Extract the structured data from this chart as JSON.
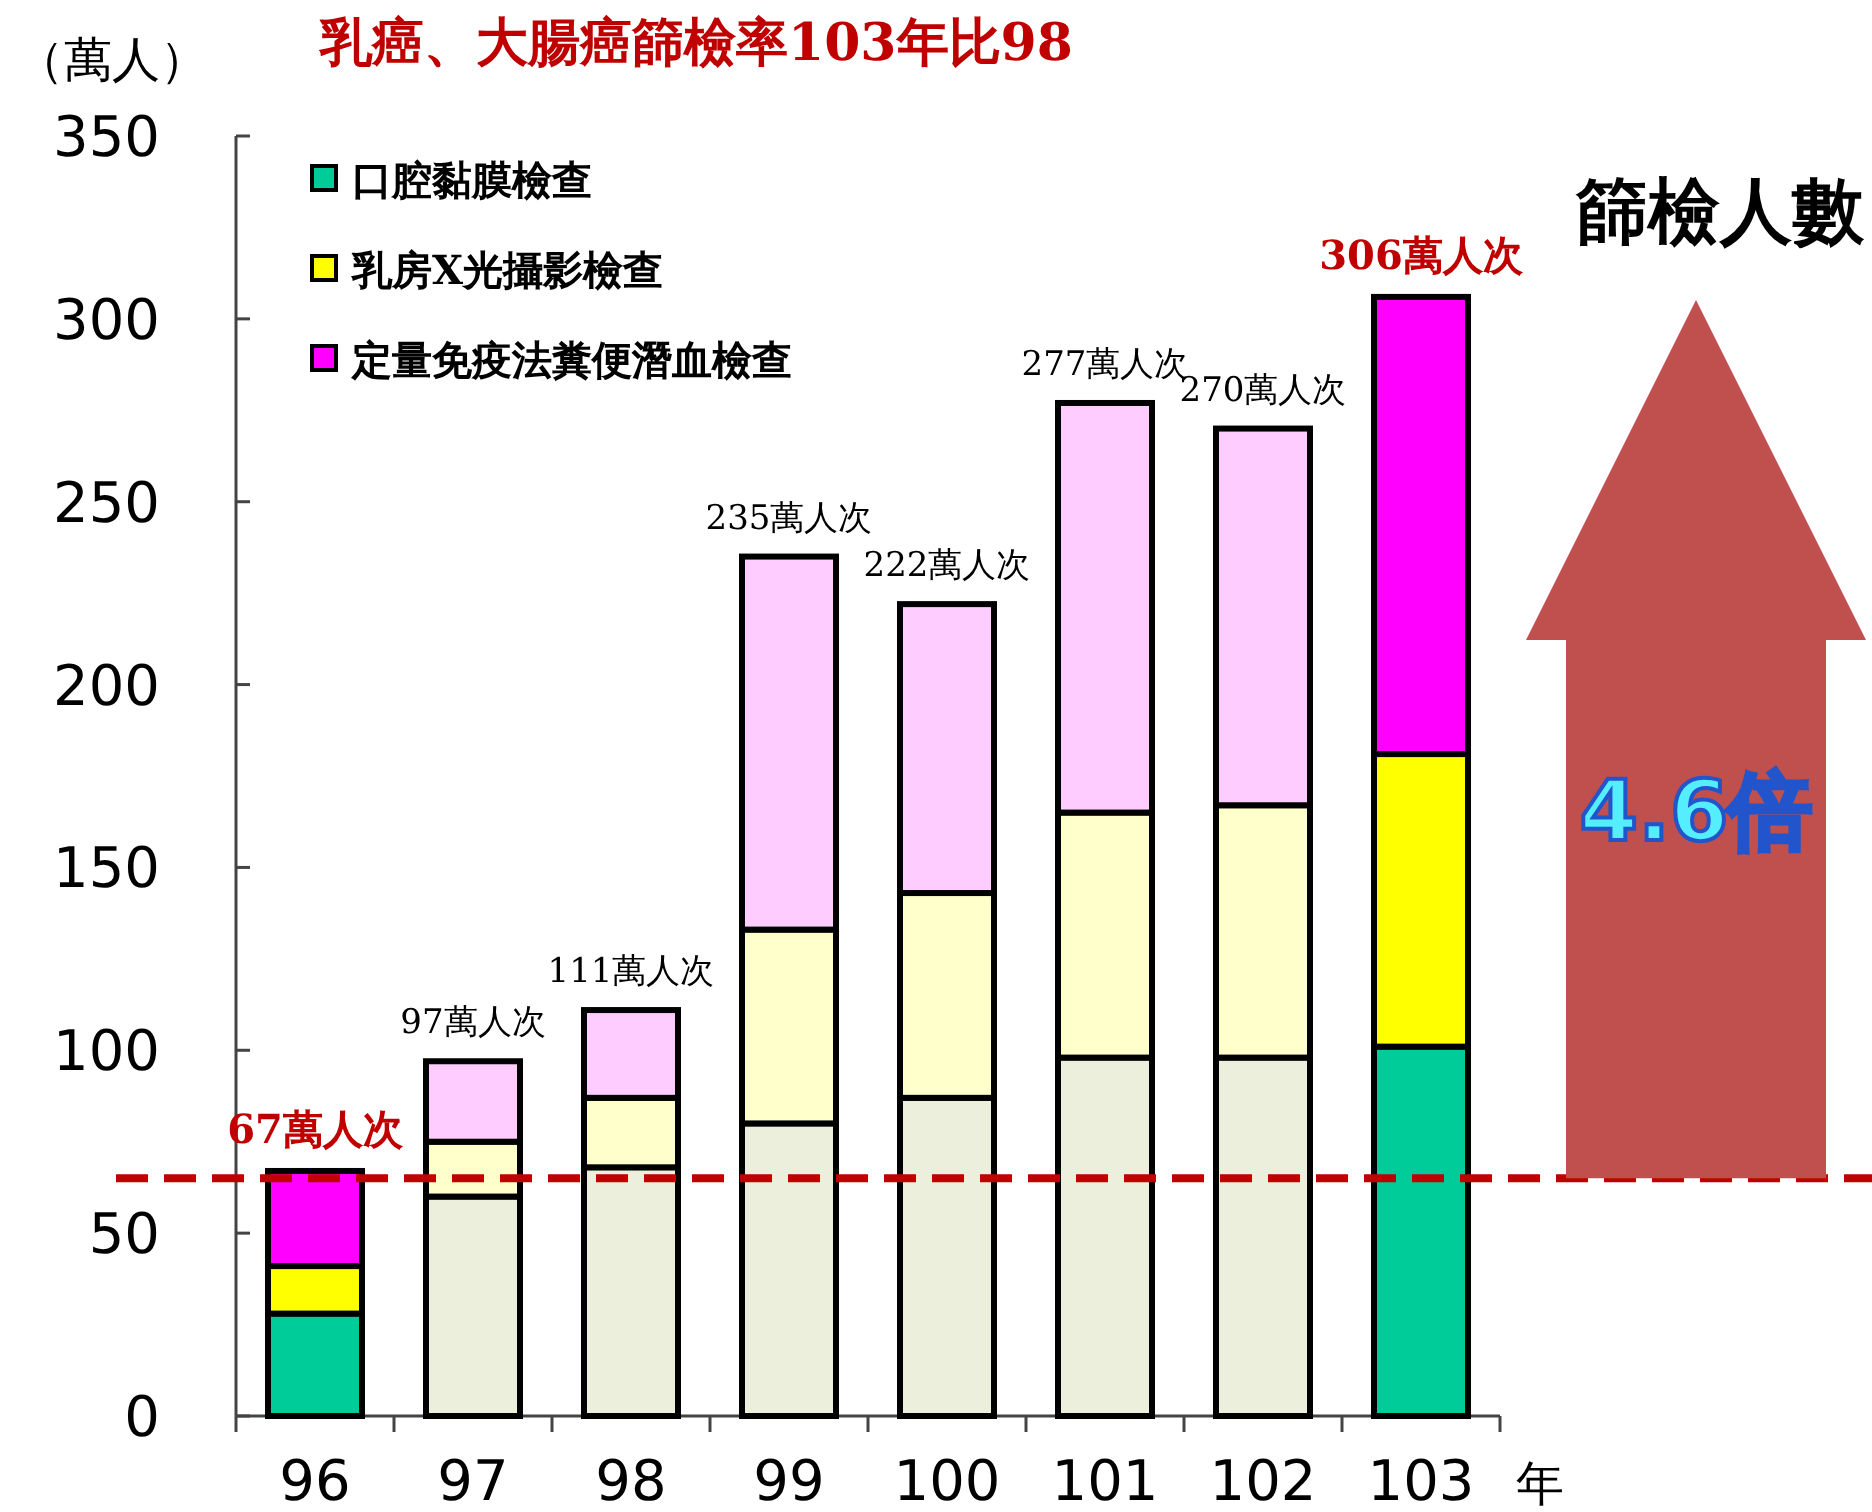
{
  "chart_data": {
    "type": "bar",
    "stacked": true,
    "title": "乳癌、大腸癌篩檢率103年比98",
    "ylabel": "（萬人）",
    "xlabel": "年",
    "categories": [
      "96",
      "97",
      "98",
      "99",
      "100",
      "101",
      "102",
      "103"
    ],
    "series": [
      {
        "name": "口腔黏膜檢查",
        "color": "#00cc99",
        "colors": [
          "#00cc99",
          "#ebefdc",
          "#ebefdc",
          "#ebefdc",
          "#ebefdc",
          "#ebefdc",
          "#ebefdc",
          "#00cc99"
        ],
        "values": [
          28,
          60,
          68,
          80,
          87,
          98,
          98,
          101
        ]
      },
      {
        "name": "乳房X光攝影檢查",
        "color": "#ffff00",
        "colors": [
          "#ffff00",
          "#ffffcc",
          "#ffffcc",
          "#ffffcc",
          "#ffffcc",
          "#ffffcc",
          "#ffffcc",
          "#ffff00"
        ],
        "values": [
          13,
          15,
          19,
          53,
          56,
          67,
          69,
          80
        ]
      },
      {
        "name": "定量免疫法糞便潛血檢查",
        "color": "#ff00ff",
        "colors": [
          "#ff00ff",
          "#ffccff",
          "#ffccff",
          "#ffccff",
          "#ffccff",
          "#ffccff",
          "#ffccff",
          "#ff00ff"
        ],
        "values": [
          26,
          22,
          24,
          102,
          79,
          112,
          103,
          125
        ]
      }
    ],
    "totals": [
      "67萬人次",
      "97萬人次",
      "111萬人次",
      "235萬人次",
      "222萬人次",
      "277萬人次",
      "270萬人次",
      "306萬人次"
    ],
    "ylim": [
      0,
      350
    ],
    "yticks": [
      0,
      50,
      100,
      150,
      200,
      250,
      300,
      350
    ],
    "ref_lines": [
      {
        "axis": "y",
        "value": 65,
        "color": "#c00000",
        "line_style": "dashed"
      }
    ],
    "annotations": [
      "篩檢人數",
      "4.6倍"
    ],
    "legend": "top left",
    "grid": false
  }
}
